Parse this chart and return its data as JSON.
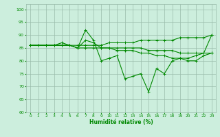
{
  "xlabel": "Humidité relative (%)",
  "bg_color": "#cceedd",
  "grid_color": "#99bbaa",
  "line_color": "#008800",
  "ylim": [
    60,
    102
  ],
  "xlim": [
    -0.5,
    23.5
  ],
  "yticks": [
    60,
    65,
    70,
    75,
    80,
    85,
    90,
    95,
    100
  ],
  "xticks": [
    0,
    1,
    2,
    3,
    4,
    5,
    6,
    7,
    8,
    9,
    10,
    11,
    12,
    13,
    14,
    15,
    16,
    17,
    18,
    19,
    20,
    21,
    22,
    23
  ],
  "series1": [
    86,
    86,
    86,
    86,
    86,
    86,
    85,
    92,
    88,
    80,
    81,
    82,
    73,
    74,
    75,
    68,
    77,
    75,
    80,
    81,
    81,
    82,
    83,
    90
  ],
  "series2": [
    86,
    86,
    86,
    86,
    87,
    86,
    85,
    88,
    87,
    85,
    85,
    85,
    85,
    85,
    85,
    84,
    84,
    84,
    84,
    83,
    83,
    83,
    83,
    83
  ],
  "series3": [
    86,
    86,
    86,
    86,
    86,
    86,
    86,
    86,
    86,
    86,
    87,
    87,
    87,
    87,
    88,
    88,
    88,
    88,
    88,
    89,
    89,
    89,
    89,
    90
  ],
  "series4": [
    86,
    86,
    86,
    86,
    86,
    86,
    85,
    85,
    85,
    85,
    85,
    84,
    84,
    84,
    83,
    83,
    82,
    82,
    81,
    81,
    80,
    80,
    82,
    83
  ]
}
